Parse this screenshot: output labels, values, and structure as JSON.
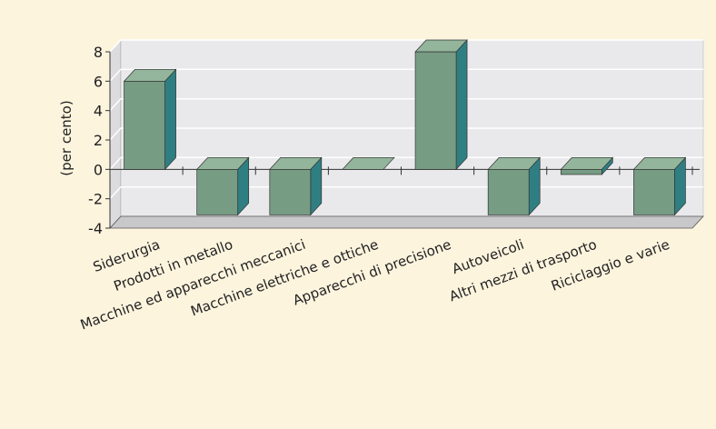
{
  "chart_data": {
    "type": "bar",
    "style": "3d",
    "ylabel": "(per cento)",
    "ylim": [
      -4,
      8
    ],
    "yticks": [
      -4,
      -2,
      0,
      2,
      4,
      6,
      8
    ],
    "categories": [
      "Siderurgia",
      "Prodotti in metallo",
      "Macchine ed apparecchi meccanici",
      "Macchine elettriche e ottiche",
      "Apparecchi di precisione",
      "Autoveicoli",
      "Altri mezzi di trasporto",
      "Riciclaggio e varie"
    ],
    "values": [
      6.0,
      -3.1,
      -3.1,
      0.0,
      8.0,
      -3.1,
      -0.35,
      -3.1
    ],
    "grid": true,
    "colors": {
      "background": "#fdf4de",
      "plot_back": "#e9e9ec",
      "plot_side": "#dcdcdf",
      "floor": "#c8c8cb",
      "bar_front": "#769c84",
      "bar_top": "#93b59b",
      "bar_side": "#2f7f82"
    }
  }
}
